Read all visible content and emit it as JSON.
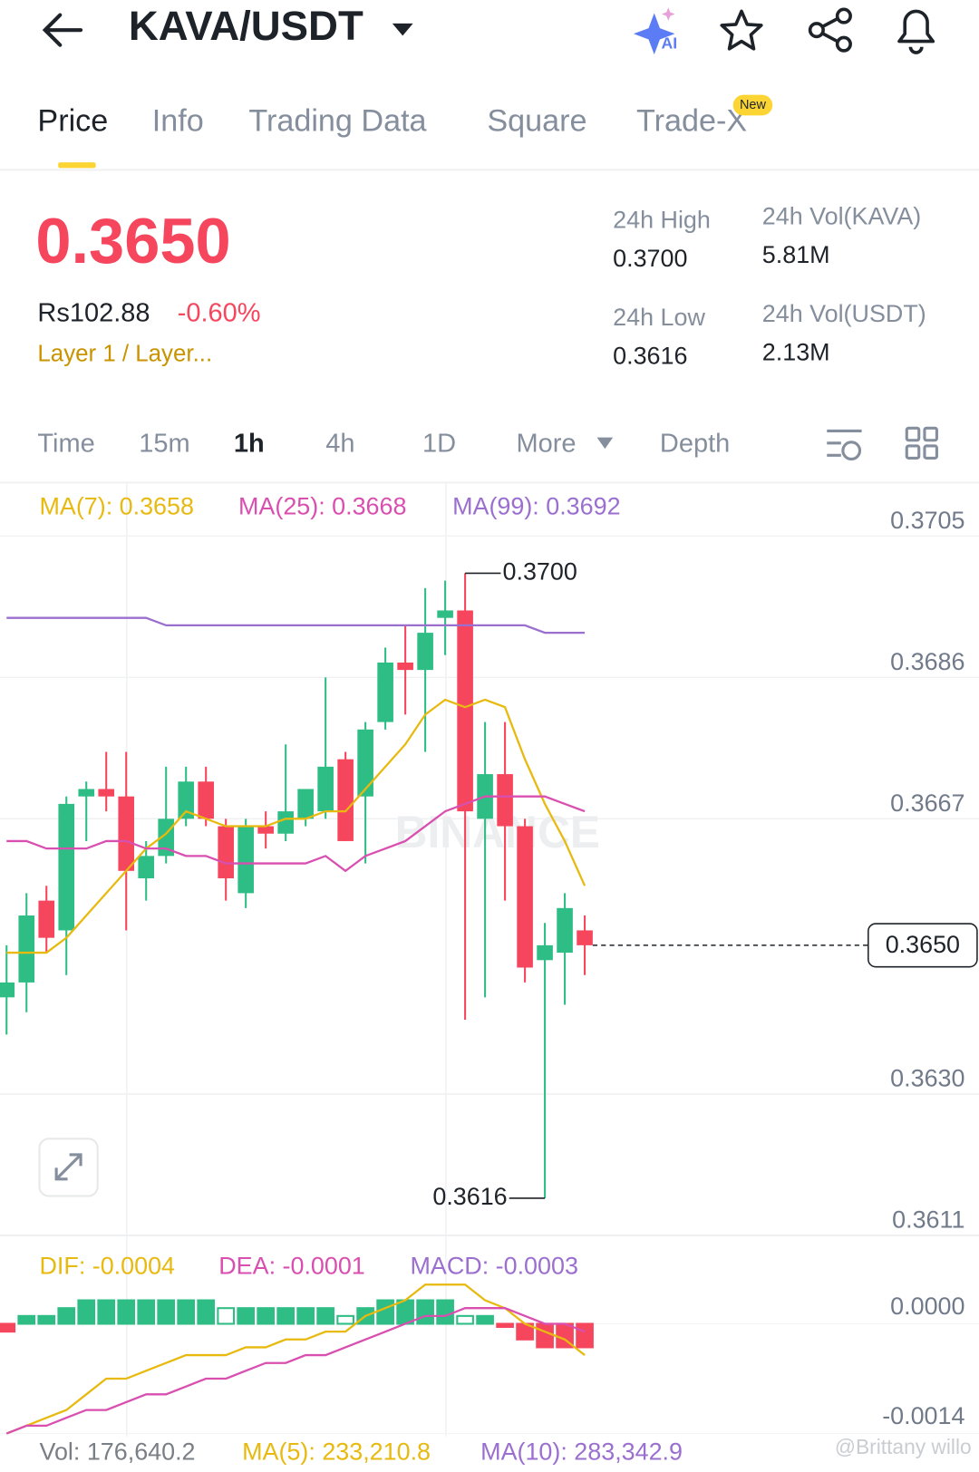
{
  "header": {
    "pair": "KAVA/USDT",
    "ai_badge": "AI"
  },
  "tabs": {
    "items": [
      "Price",
      "Info",
      "Trading Data",
      "Square",
      "Trade-X"
    ],
    "badge": "New"
  },
  "price": {
    "last": "0.3650",
    "fiat": "Rs102.88",
    "change": "-0.60%",
    "tag": "Layer 1 / Layer..."
  },
  "stats": [
    {
      "label": "24h High",
      "value": "0.3700"
    },
    {
      "label": "24h Vol(KAVA)",
      "value": "5.81M"
    },
    {
      "label": "24h Low",
      "value": "0.3616"
    },
    {
      "label": "24h Vol(USDT)",
      "value": "2.13M"
    }
  ],
  "intervals": [
    "Time",
    "15m",
    "1h",
    "4h",
    "1D",
    "More",
    "Depth"
  ],
  "chart_data": [
    {
      "type": "candlestick",
      "watermark": "BINANCE",
      "up_color": "#2ebd85",
      "down_color": "#f6465d",
      "candles": {
        "open": [
          0.3643,
          0.3645,
          0.3656,
          0.3652,
          0.367,
          0.3671,
          0.367,
          0.3659,
          0.3662,
          0.3667,
          0.3672,
          0.3666,
          0.3657,
          0.3666,
          0.3665,
          0.3667,
          0.3668,
          0.3675,
          0.367,
          0.368,
          0.3688,
          0.3687,
          0.3694,
          0.3695,
          0.3667,
          0.3673,
          0.3666,
          0.3648,
          0.3649,
          0.3652
        ],
        "high": [
          0.365,
          0.3657,
          0.3658,
          0.367,
          0.3672,
          0.3676,
          0.3676,
          0.3664,
          0.3674,
          0.3674,
          0.3674,
          0.3667,
          0.3667,
          0.3668,
          0.3677,
          0.3671,
          0.3686,
          0.3676,
          0.368,
          0.369,
          0.3693,
          0.3698,
          0.3699,
          0.37,
          0.368,
          0.368,
          0.3667,
          0.3653,
          0.3657,
          0.3654
        ],
        "low": [
          0.3638,
          0.3641,
          0.3649,
          0.3646,
          0.3664,
          0.3668,
          0.3652,
          0.3656,
          0.3661,
          0.3666,
          0.3666,
          0.3656,
          0.3655,
          0.3663,
          0.3664,
          0.3666,
          0.3667,
          0.3664,
          0.3661,
          0.3679,
          0.3681,
          0.3676,
          0.3689,
          0.364,
          0.3643,
          0.3656,
          0.3645,
          0.3616,
          0.3642,
          0.3646
        ],
        "close": [
          0.3645,
          0.3654,
          0.3651,
          0.3669,
          0.3671,
          0.367,
          0.366,
          0.3662,
          0.3667,
          0.3672,
          0.3667,
          0.3659,
          0.3666,
          0.3665,
          0.3668,
          0.3671,
          0.3674,
          0.3664,
          0.3679,
          0.3688,
          0.3687,
          0.3692,
          0.3695,
          0.3668,
          0.3673,
          0.3666,
          0.3647,
          0.365,
          0.3655,
          0.365
        ]
      },
      "series": [
        {
          "name": "MA(7): 0.3658",
          "color": "#e8b90f",
          "values": [
            0.3649,
            0.3649,
            0.3649,
            0.3651,
            0.3654,
            0.3657,
            0.366,
            0.3663,
            0.3665,
            0.3668,
            0.3667,
            0.3666,
            0.3666,
            0.3666,
            0.3667,
            0.3667,
            0.3668,
            0.3668,
            0.3671,
            0.3674,
            0.3677,
            0.3681,
            0.3683,
            0.3682,
            0.3683,
            0.3682,
            0.3675,
            0.3669,
            0.3664,
            0.3658
          ]
        },
        {
          "name": "MA(25): 0.3668",
          "color": "#d94fb0",
          "values": [
            0.3664,
            0.3664,
            0.3663,
            0.3663,
            0.3663,
            0.3664,
            0.3664,
            0.3663,
            0.3663,
            0.3662,
            0.3662,
            0.3661,
            0.3661,
            0.3661,
            0.3661,
            0.3661,
            0.3662,
            0.366,
            0.3662,
            0.3663,
            0.3664,
            0.3666,
            0.3668,
            0.3669,
            0.367,
            0.367,
            0.367,
            0.367,
            0.3669,
            0.3668
          ]
        },
        {
          "name": "MA(99): 0.3692",
          "color": "#9b6fcf",
          "values": [
            0.3694,
            0.3694,
            0.3694,
            0.3694,
            0.3694,
            0.3694,
            0.3694,
            0.3694,
            0.3693,
            0.3693,
            0.3693,
            0.3693,
            0.3693,
            0.3693,
            0.3693,
            0.3693,
            0.3693,
            0.3693,
            0.3693,
            0.3693,
            0.3693,
            0.3693,
            0.3693,
            0.3693,
            0.3693,
            0.3693,
            0.3693,
            0.3692,
            0.3692,
            0.3692
          ]
        }
      ],
      "ylim": [
        0.3611,
        0.3705
      ],
      "yticks": [
        0.3705,
        0.3686,
        0.3667,
        {
          "value": 0.363,
          "label": "0.3630"
        },
        0.3611
      ],
      "grid": true,
      "annotations": {
        "high": {
          "value": 0.37,
          "label": "0.3700"
        },
        "low": {
          "value": 0.3616,
          "label": "0.3616"
        },
        "last": {
          "value": 0.365,
          "label": "0.3650"
        }
      }
    },
    {
      "type": "macd",
      "hist_values": [
        -0.0001,
        0.0001,
        0.0001,
        0.0002,
        0.0003,
        0.0003,
        0.0003,
        0.0003,
        0.0003,
        0.0003,
        0.0003,
        0.0002,
        0.0002,
        0.0002,
        0.0002,
        0.0002,
        0.0002,
        0.0001,
        0.0002,
        0.0003,
        0.0003,
        0.0003,
        0.0003,
        0.0001,
        0.0001,
        -4e-05,
        -0.0002,
        -0.0003,
        -0.0003,
        -0.0003
      ],
      "hist_name": "MACD: -0.0003",
      "hist_color": "#9b6fcf",
      "up_color": "#2ebd85",
      "down_color": "#f6465d",
      "series": [
        {
          "name": "DIF: -0.0004",
          "color": "#e8b90f",
          "values": [
            -0.0014,
            -0.0013,
            -0.0012,
            -0.0011,
            -0.0009,
            -0.0007,
            -0.0007,
            -0.0006,
            -0.0005,
            -0.0004,
            -0.0004,
            -0.0004,
            -0.0003,
            -0.0003,
            -0.0002,
            -0.0002,
            -0.0001,
            -0.0001,
            0.0001,
            0.0002,
            0.0003,
            0.0005,
            0.0005,
            0.0005,
            0.0003,
            0.0002,
            0.0,
            -0.0001,
            -0.0002,
            -0.0004
          ]
        },
        {
          "name": "DEA: -0.0001",
          "color": "#d94fb0",
          "values": [
            -0.0014,
            -0.0013,
            -0.0013,
            -0.0012,
            -0.0011,
            -0.0011,
            -0.001,
            -0.0009,
            -0.0009,
            -0.0008,
            -0.0007,
            -0.0007,
            -0.0006,
            -0.0005,
            -0.0005,
            -0.0004,
            -0.0004,
            -0.0003,
            -0.0002,
            -0.0001,
            0.0,
            0.0001,
            0.0001,
            0.0002,
            0.0002,
            0.0002,
            0.0001,
            0.0,
            0.0,
            -0.0001
          ]
        }
      ],
      "ylim": [
        -0.0014,
        0.0009
      ],
      "yticks": [
        {
          "value": 0,
          "label": "0.0000"
        },
        -0.0014
      ]
    }
  ],
  "volume": {
    "labels": [
      {
        "text": "Vol: 176,640.2",
        "color": "#7a7f86"
      },
      {
        "text": "MA(5): 233,210.8",
        "color": "#e8b90f"
      },
      {
        "text": "MA(10): 283,342.9",
        "color": "#9b6fcf"
      }
    ]
  },
  "watermark_user": "@Brittany willo"
}
